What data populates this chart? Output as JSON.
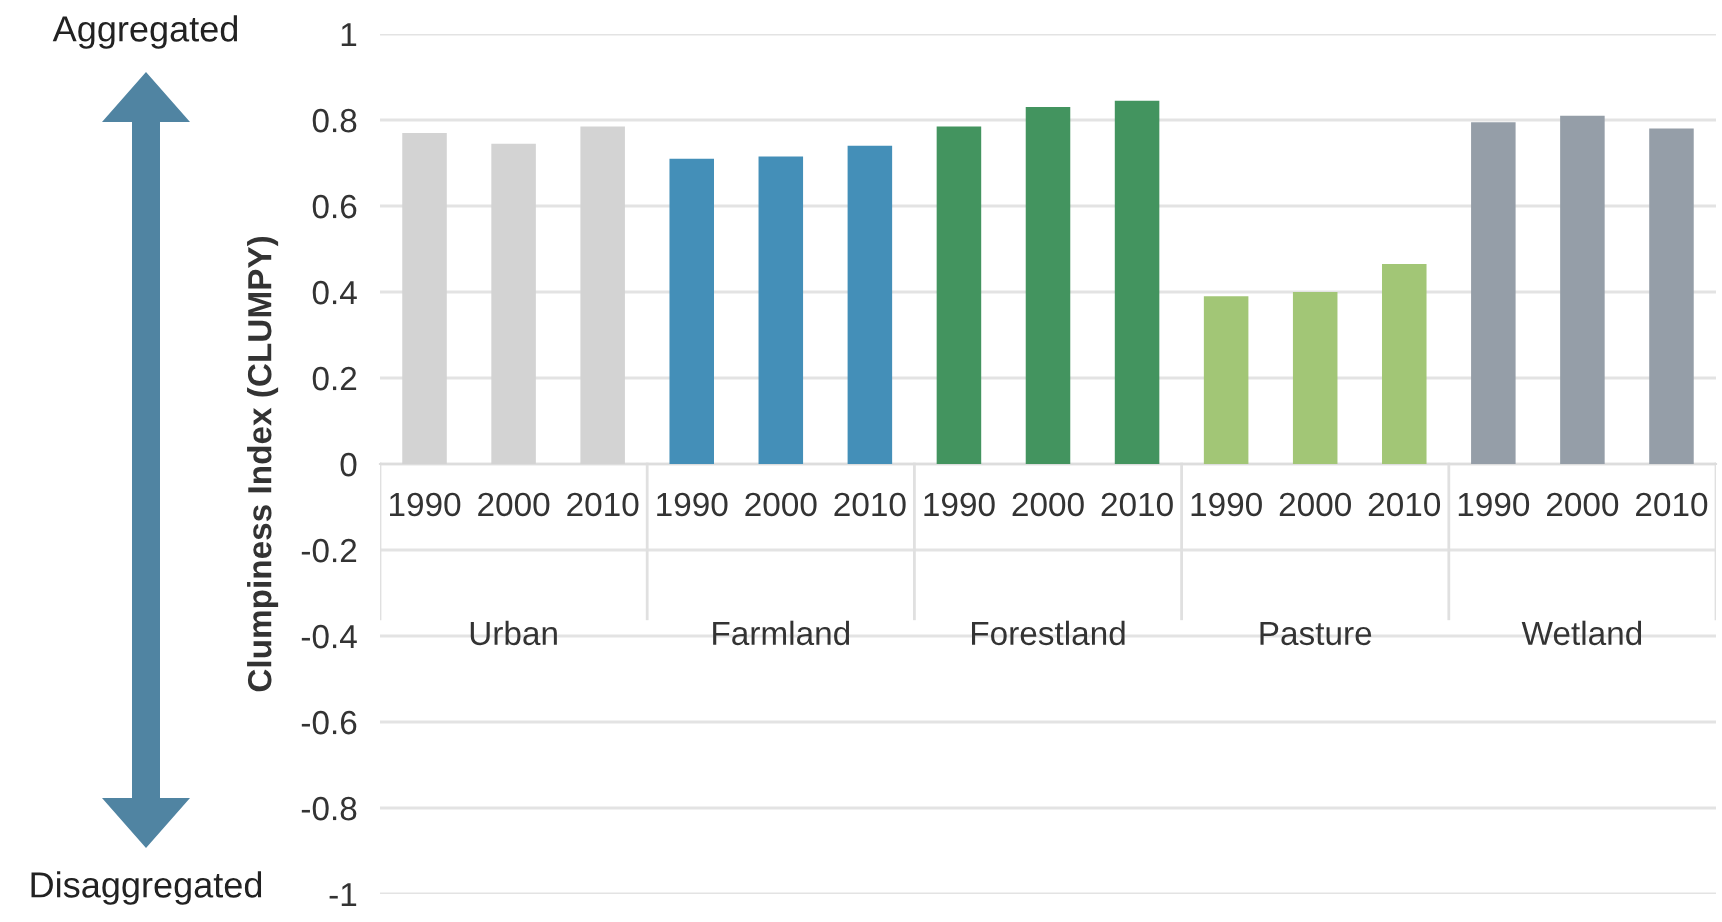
{
  "chart_data": {
    "type": "bar",
    "ylabel": "Clumpiness Index (CLUMPY)",
    "categories": [
      "1990",
      "2000",
      "2010",
      "1990",
      "2000",
      "2010",
      "1990",
      "2000",
      "2010",
      "1990",
      "2000",
      "2010",
      "1990",
      "2000",
      "2010"
    ],
    "values": [
      0.77,
      0.745,
      0.785,
      0.71,
      0.715,
      0.74,
      0.785,
      0.83,
      0.845,
      0.39,
      0.4,
      0.465,
      0.795,
      0.81,
      0.78
    ],
    "colors": [
      "#d3d3d3",
      "#d3d3d3",
      "#d3d3d3",
      "#448fb8",
      "#448fb8",
      "#448fb8",
      "#43945f",
      "#43945f",
      "#43945f",
      "#a2c676",
      "#a2c676",
      "#a2c676",
      "#959ea8",
      "#959ea8",
      "#959ea8"
    ],
    "annotations": [
      "Urban",
      "Farmland",
      "Forestland",
      "Pasture",
      "Wetland",
      "Aggregated",
      "Disaggregated"
    ],
    "ylim": [
      -1,
      1
    ],
    "yticks": [
      1,
      0.8,
      0.6,
      0.4,
      0.2,
      0,
      -0.2,
      -0.4,
      -0.6,
      -0.8,
      -1
    ],
    "grid": "y",
    "legend": false
  }
}
